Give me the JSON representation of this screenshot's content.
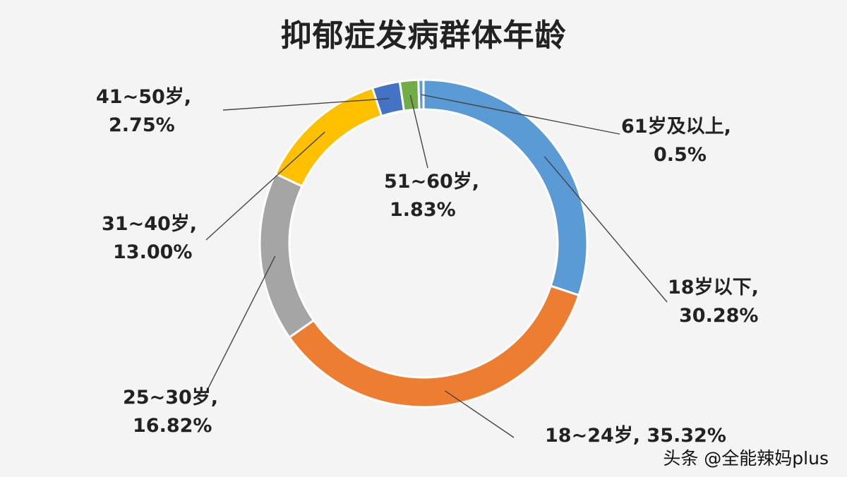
{
  "chart_data": {
    "type": "pie",
    "title": "抑郁症发病群体年龄",
    "donut": true,
    "slices": [
      {
        "label": "18岁以下,",
        "percent_text": "30.28%",
        "value": 30.28,
        "color": "#5b9bd5"
      },
      {
        "label": "18~24岁,",
        "percent_text": "35.32%",
        "value": 35.32,
        "color": "#ed7d31"
      },
      {
        "label": "25~30岁,",
        "percent_text": "16.82%",
        "value": 16.82,
        "color": "#a5a5a5"
      },
      {
        "label": "31~40岁,",
        "percent_text": "13.00%",
        "value": 13.0,
        "color": "#ffc000"
      },
      {
        "label": "41~50岁,",
        "percent_text": "2.75%",
        "value": 2.75,
        "color": "#4472c4"
      },
      {
        "label": "51~60岁,",
        "percent_text": "1.83%",
        "value": 1.83,
        "color": "#70ad47"
      },
      {
        "label": "61岁及以上,",
        "percent_text": "0.5%",
        "value": 0.5,
        "color": "#5b9bd5"
      }
    ]
  },
  "credit": "头条 @全能辣妈plus"
}
